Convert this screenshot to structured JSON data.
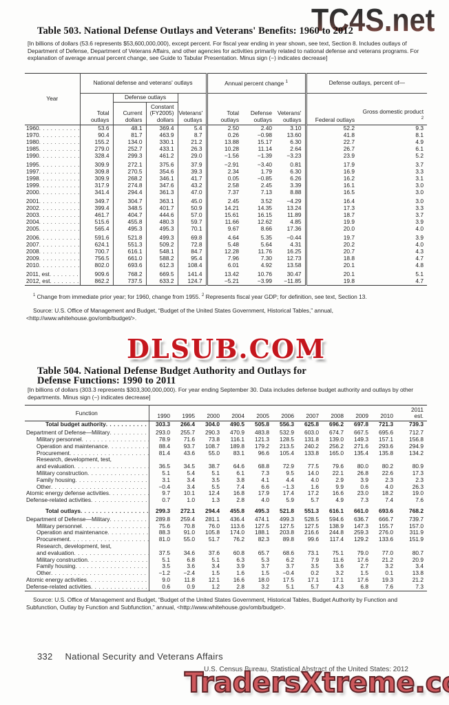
{
  "watermarks": {
    "top_right": "TC4S.net",
    "middle": "DLSUB.COM",
    "bottom": "TradersXtreme.com",
    "colors": {
      "middle_red": "#c5161d",
      "bottom_fill": "#cd585c",
      "bottom_outline": "#5e2327",
      "top_gradient_start": "#2e2e2e",
      "top_gradient_end": "#8a4a42"
    }
  },
  "table503": {
    "title": "Table 503. National Defense Outlays and Veterans' Benefits: 1960 to 2012",
    "bracket_note": "[In billions of dollars (53.6 represents $53,600,000,000), except percent. For fiscal year ending in year shown, see text, Section 8. Includes outlays of Department of Defense, Department of Veterans Affairs, and other agencies for activities primarily related to national  defense and veterans programs. For explanation of average annual percent change, see Guide to Tabular Presentation. Minus sign (−) indicates decrease]",
    "header": {
      "year": "Year",
      "group1": "National defense and veterans' outlays",
      "group2": "Annual percent change",
      "group2_sup": "1",
      "group3": "Defense outlays, percent of—",
      "total_outlays": "Total outlays",
      "defense_outlays": "Defense outlays",
      "current_dollars": "Current dollars",
      "constant_dollars": "Constant (FY2005) dollars",
      "veterans_outlays": "Veterans' outlays",
      "apc_total": "Total outlays",
      "apc_defense": "Defense outlays",
      "apc_veterans": "Veterans' outlays",
      "federal_outlays": "Federal outlays",
      "gdp": "Gross domestic product",
      "gdp_sup": "2"
    },
    "rows": [
      {
        "year": "1960",
        "values": [
          "53.6",
          "48.1",
          "369.4",
          "5.4",
          "2.50",
          "2.40",
          "3.10",
          "52.2",
          "9.3"
        ]
      },
      {
        "year": "1970",
        "values": [
          "90.4",
          "81.7",
          "463.9",
          "8.7",
          "0.26",
          "−0.98",
          "13.60",
          "41.8",
          "8.1"
        ]
      },
      {
        "year": "1980",
        "values": [
          "155.2",
          "134.0",
          "330.1",
          "21.2",
          "13.88",
          "15.17",
          "6.30",
          "22.7",
          "4.9"
        ]
      },
      {
        "year": "1985",
        "values": [
          "279.0",
          "252.7",
          "433.1",
          "26.3",
          "10.28",
          "11.14",
          "2.64",
          "26.7",
          "6.1"
        ]
      },
      {
        "year": "1990",
        "values": [
          "328.4",
          "299.3",
          "461.2",
          "29.0",
          "−1.56",
          "−1.39",
          "−3.23",
          "23.9",
          "5.2"
        ]
      },
      {
        "year": "1995",
        "gap": true,
        "values": [
          "309.9",
          "272.1",
          "375.6",
          "37.9",
          "−2.91",
          "−3.40",
          "0.81",
          "17.9",
          "3.7"
        ]
      },
      {
        "year": "1997",
        "values": [
          "309.8",
          "270.5",
          "354.6",
          "39.3",
          "2.34",
          "1.79",
          "6.30",
          "16.9",
          "3.3"
        ]
      },
      {
        "year": "1998",
        "values": [
          "309.9",
          "268.2",
          "346.1",
          "41.7",
          "0.05",
          "−0.85",
          "6.26",
          "16.2",
          "3.1"
        ]
      },
      {
        "year": "1999",
        "values": [
          "317.9",
          "274.8",
          "347.6",
          "43.2",
          "2.58",
          "2.45",
          "3.39",
          "16.1",
          "3.0"
        ]
      },
      {
        "year": "2000",
        "values": [
          "341.4",
          "294.4",
          "361.3",
          "47.0",
          "7.37",
          "7.13",
          "8.88",
          "16.5",
          "3.0"
        ]
      },
      {
        "year": "2001",
        "gap": true,
        "values": [
          "349.7",
          "304.7",
          "363.1",
          "45.0",
          "2.45",
          "3.52",
          "−4.29",
          "16.4",
          "3.0"
        ]
      },
      {
        "year": "2002",
        "values": [
          "399.4",
          "348.5",
          "401.7",
          "50.9",
          "14.21",
          "14.35",
          "13.24",
          "17.3",
          "3.3"
        ]
      },
      {
        "year": "2003",
        "values": [
          "461.7",
          "404.7",
          "444.6",
          "57.0",
          "15.61",
          "16.15",
          "11.89",
          "18.7",
          "3.7"
        ]
      },
      {
        "year": "2004",
        "values": [
          "515.6",
          "455.8",
          "480.3",
          "59.7",
          "11.66",
          "12.62",
          "4.85",
          "19.9",
          "3.9"
        ]
      },
      {
        "year": "2005",
        "values": [
          "565.4",
          "495.3",
          "495.3",
          "70.1",
          "9.67",
          "8.66",
          "17.36",
          "20.0",
          "4.0"
        ]
      },
      {
        "year": "2006",
        "gap": true,
        "values": [
          "591.6",
          "521.8",
          "499.3",
          "69.8",
          "4.64",
          "5.35",
          "−0.44",
          "19.7",
          "3.9"
        ]
      },
      {
        "year": "2007",
        "values": [
          "624.1",
          "551.3",
          "509.2",
          "72.8",
          "5.48",
          "5.64",
          "4.31",
          "20.2",
          "4.0"
        ]
      },
      {
        "year": "2008",
        "values": [
          "700.7",
          "616.1",
          "548.1",
          "84.7",
          "12.28",
          "11.76",
          "16.25",
          "20.7",
          "4.3"
        ]
      },
      {
        "year": "2009",
        "values": [
          "756.5",
          "661.0",
          "588.2",
          "95.4",
          "7.96",
          "7.30",
          "12.73",
          "18.8",
          "4.7"
        ]
      },
      {
        "year": "2010",
        "values": [
          "802.0",
          "693.6",
          "612.3",
          "108.4",
          "6.01",
          "4.92",
          "13.58",
          "20.1",
          "4.8"
        ]
      },
      {
        "year": "2011, est",
        "gap": true,
        "values": [
          "909.6",
          "768.2",
          "669.5",
          "141.4",
          "13.42",
          "10.76",
          "30.47",
          "20.1",
          "5.1"
        ]
      },
      {
        "year": "2012, est",
        "values": [
          "862.2",
          "737.5",
          "633.2",
          "124.7",
          "−5.21",
          "−3.99",
          "−11.85",
          "19.8",
          "4.7"
        ]
      }
    ],
    "fn1_sup": "1",
    "fn1": "Change from immediate prior year; for 1960, change from 1955.",
    "fn2_sup": "2",
    "fn2": "Represents fiscal year GDP; for definition, see text, Section 13.",
    "source": "Source: U.S. Office of Management and Budget, “Budget of the United States Government, Historical Tables,” annual, <http://www.whitehouse.gov/omb/budget/>."
  },
  "table504": {
    "title_line1": "Table 504. National Defense Budget Authority and Outlays for",
    "title_line2": "Defense Functions: 1990 to 2011",
    "bracket_note": "[In billions of dollars (303.3 represents $303,300,000,000). For year ending September 30. Data includes defense budget authority and outlays by other departments. Minus sign (−) indicates decrease]",
    "function_label": "Function",
    "years": [
      "1990",
      "1995",
      "2000",
      "2004",
      "2005",
      "2006",
      "2007",
      "2008",
      "2009",
      "2010"
    ],
    "est_year_line1": "2011",
    "est_year_line2": "est.",
    "rows": [
      {
        "label": "Total budget authority",
        "bold": true,
        "values": [
          "303.3",
          "266.4",
          "304.0",
          "490.5",
          "505.8",
          "556.3",
          "625.8",
          "696.2",
          "697.8",
          "721.3",
          "739.3"
        ]
      },
      {
        "label": "Department of Defense—Military",
        "gap": "sm",
        "values": [
          "293.0",
          "255.7",
          "290.3",
          "470.9",
          "483.8",
          "532.9",
          "603.0",
          "674.7",
          "667.5",
          "695.6",
          "712.7"
        ]
      },
      {
        "label": "Military personnel",
        "indent": 1,
        "values": [
          "78.9",
          "71.6",
          "73.8",
          "116.1",
          "121.3",
          "128.5",
          "131.8",
          "139.0",
          "149.3",
          "157.1",
          "156.8"
        ]
      },
      {
        "label": "Operation and maintenance",
        "indent": 1,
        "values": [
          "88.4",
          "93.7",
          "108.7",
          "189.8",
          "179.2",
          "213.5",
          "240.2",
          "256.2",
          "271.6",
          "293.6",
          "294.9"
        ]
      },
      {
        "label": "Procurement",
        "indent": 1,
        "values": [
          "81.4",
          "43.6",
          "55.0",
          "83.1",
          "96.6",
          "105.4",
          "133.8",
          "165.0",
          "135.4",
          "135.8",
          "134.2"
        ]
      },
      {
        "label": "Research, development, test,",
        "label2": "and evaluation",
        "indent": 1,
        "values": [
          "36.5",
          "34.5",
          "38.7",
          "64.6",
          "68.8",
          "72.9",
          "77.5",
          "79.6",
          "80.0",
          "80.2",
          "80.9"
        ]
      },
      {
        "label": "Military construction",
        "indent": 1,
        "values": [
          "5.1",
          "5.4",
          "5.1",
          "6.1",
          "7.3",
          "9.5",
          "14.0",
          "22.1",
          "26.8",
          "22.6",
          "17.3"
        ]
      },
      {
        "label": "Family housing",
        "indent": 1,
        "values": [
          "3.1",
          "3.4",
          "3.5",
          "3.8",
          "4.1",
          "4.4",
          "4.0",
          "2.9",
          "3.9",
          "2.3",
          "2.3"
        ]
      },
      {
        "label": "Other",
        "indent": 1,
        "values": [
          "−0.4",
          "3.4",
          "5.5",
          "7.4",
          "6.6",
          "−1.3",
          "1.6",
          "9.9",
          "0.6",
          "4.0",
          "26.3"
        ]
      },
      {
        "label": "Atomic energy defense activities",
        "values": [
          "9.7",
          "10.1",
          "12.4",
          "16.8",
          "17.9",
          "17.4",
          "17.2",
          "16.6",
          "23.0",
          "18.2",
          "19.0"
        ]
      },
      {
        "label": "Defense-related activities",
        "values": [
          "0.7",
          "1.0",
          "1.3",
          "2.8",
          "4.0",
          "5.9",
          "5.7",
          "4.9",
          "7.3",
          "7.4",
          "7.6"
        ]
      },
      {
        "label": "Total outlays",
        "bold": true,
        "gap": "lg",
        "values": [
          "299.3",
          "272.1",
          "294.4",
          "455.8",
          "495.3",
          "521.8",
          "551.3",
          "616.1",
          "661.0",
          "693.6",
          "768.2"
        ]
      },
      {
        "label": "Department of Defense—Military",
        "gap": "sm",
        "values": [
          "289.8",
          "259.4",
          "281.1",
          "436.4",
          "474.1",
          "499.3",
          "528.5",
          "594.6",
          "636.7",
          "666.7",
          "739.7"
        ]
      },
      {
        "label": "Military personnel",
        "indent": 1,
        "values": [
          "75.6",
          "70.8",
          "76.0",
          "113.6",
          "127.5",
          "127.5",
          "127.5",
          "138.9",
          "147.3",
          "155.7",
          "157.0"
        ]
      },
      {
        "label": "Operation and maintenance",
        "indent": 1,
        "values": [
          "88.3",
          "91.0",
          "105.8",
          "174.0",
          "188.1",
          "203.8",
          "216.6",
          "244.8",
          "259.3",
          "276.0",
          "311.9"
        ]
      },
      {
        "label": "Procurement",
        "indent": 1,
        "values": [
          "81.0",
          "55.0",
          "51.7",
          "76.2",
          "82.3",
          "89.8",
          "99.6",
          "117.4",
          "129.2",
          "133.6",
          "151.9"
        ]
      },
      {
        "label": "Research, development, test,",
        "label2": "and evaluation",
        "indent": 1,
        "values": [
          "37.5",
          "34.6",
          "37.6",
          "60.8",
          "65.7",
          "68.6",
          "73.1",
          "75.1",
          "79.0",
          "77.0",
          "80.7"
        ]
      },
      {
        "label": "Military construction",
        "indent": 1,
        "values": [
          "5.1",
          "6.8",
          "5.1",
          "6.3",
          "5.3",
          "6.2",
          "7.9",
          "11.6",
          "17.6",
          "21.2",
          "20.9"
        ]
      },
      {
        "label": "Family housing",
        "indent": 1,
        "values": [
          "3.5",
          "3.6",
          "3.4",
          "3.9",
          "3.7",
          "3.7",
          "3.5",
          "3.6",
          "2.7",
          "3.2",
          "3.4"
        ]
      },
      {
        "label": "Other",
        "indent": 1,
        "values": [
          "−1.2",
          "−2.4",
          "1.5",
          "1.6",
          "1.5",
          "−0.4",
          "0.2",
          "3.2",
          "1.5",
          "0.1",
          "13.8"
        ]
      },
      {
        "label": "Atomic energy activities",
        "values": [
          "9.0",
          "11.8",
          "12.1",
          "16.6",
          "18.0",
          "17.5",
          "17.1",
          "17.1",
          "17.6",
          "19.3",
          "21.2"
        ]
      },
      {
        "label": "Defense-related activities",
        "values": [
          "0.6",
          "0.9",
          "1.2",
          "2.8",
          "3.2",
          "5.1",
          "5.7",
          "4.3",
          "6.8",
          "7.6",
          "7.3"
        ]
      }
    ],
    "source": "Source: U.S. Office of Management and Budget, “Budget of the United States Government, Historical Tables, Budget Authority by Function and Subfunction, Outlay by Function and Subfunction,” annual, <http://www.whitehouse.gov/omb/budget>."
  },
  "footer": {
    "page_number": "332",
    "section": "National Security and Veterans Affairs",
    "credit": "U.S. Census Bureau, Statistical Abstract of the United States: 2012"
  }
}
